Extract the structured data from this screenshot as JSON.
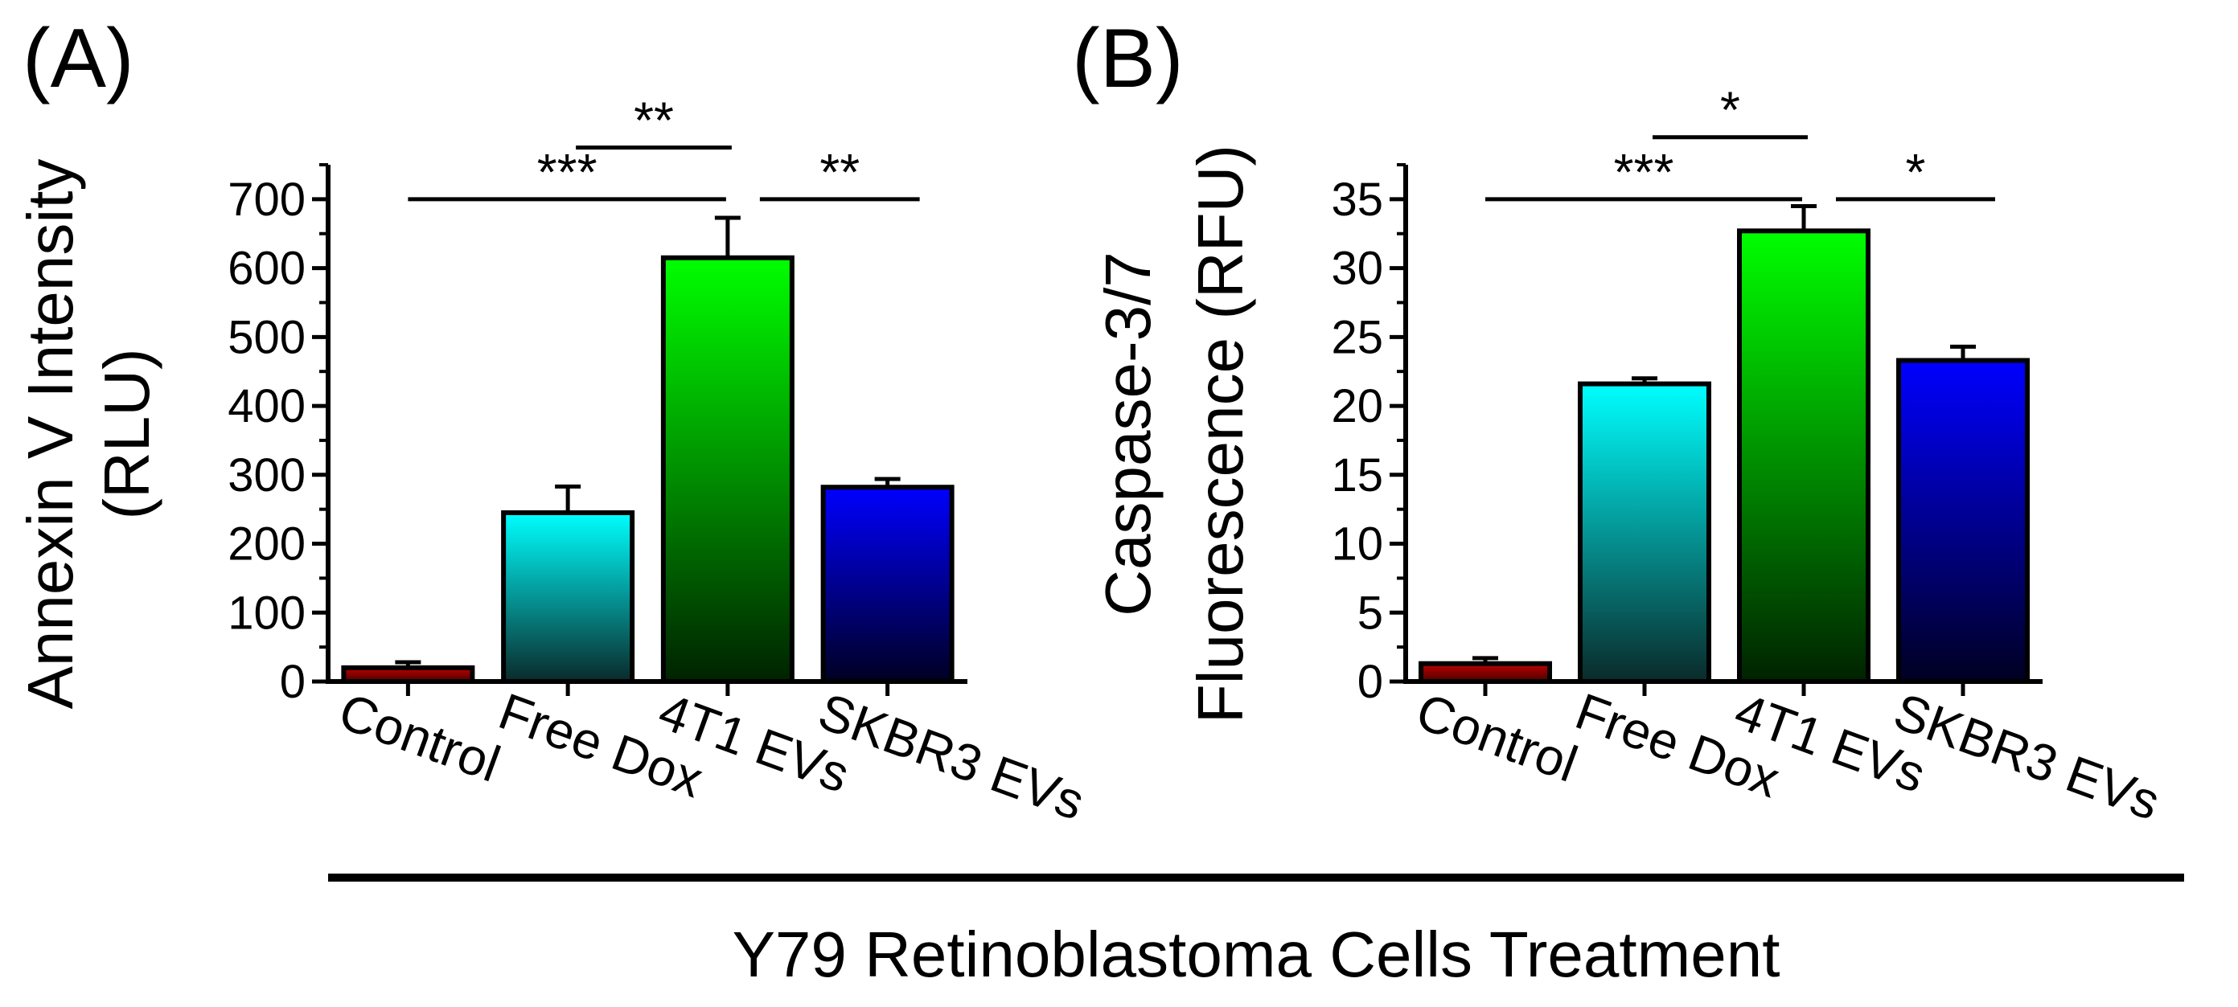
{
  "figure": {
    "footer_label": "Y79 Retinoblastoma Cells Treatment"
  },
  "chart_data": [
    {
      "type": "bar",
      "panel_label": "(A)",
      "ylabel": "Annexin V Intensity (RLU)",
      "ylabel_lines": [
        "Annexin V Intensity",
        "(RLU)"
      ],
      "ylim": [
        0,
        750
      ],
      "yticks": [
        0,
        100,
        200,
        300,
        400,
        500,
        600,
        700
      ],
      "categories": [
        "Control",
        "Free Dox",
        "4T1 EVs",
        "SKBR3 EVs"
      ],
      "values": [
        20,
        245,
        615,
        282
      ],
      "errors": [
        8,
        38,
        58,
        12
      ],
      "bar_colors": [
        [
          "#c00000",
          "#4a0000"
        ],
        [
          "#00ffff",
          "#0a2a2a"
        ],
        [
          "#00ff00",
          "#002200"
        ],
        [
          "#0000ff",
          "#000022"
        ]
      ],
      "significance": [
        {
          "from": 0,
          "to": 2,
          "label": "***",
          "level": 700
        },
        {
          "from": 1,
          "to": 2,
          "label": "**",
          "level": 775
        },
        {
          "from": 2,
          "to": 3,
          "label": "**",
          "level": 700
        }
      ]
    },
    {
      "type": "bar",
      "panel_label": "(B)",
      "ylabel": "Caspase-3/7 Fluorescence (RFU)",
      "ylabel_lines": [
        "Caspase-3/7",
        "Fluorescence (RFU)"
      ],
      "ylim": [
        0,
        37.5
      ],
      "yticks": [
        0,
        5,
        10,
        15,
        20,
        25,
        30,
        35
      ],
      "categories": [
        "Control",
        "Free Dox",
        "4T1 EVs",
        "SKBR3 EVs"
      ],
      "values": [
        1.3,
        21.6,
        32.7,
        23.3
      ],
      "errors": [
        0.4,
        0.4,
        1.8,
        1.0
      ],
      "bar_colors": [
        [
          "#c00000",
          "#4a0000"
        ],
        [
          "#00ffff",
          "#0a2a2a"
        ],
        [
          "#00ff00",
          "#002200"
        ],
        [
          "#0000ff",
          "#000022"
        ]
      ],
      "significance": [
        {
          "from": 0,
          "to": 2,
          "label": "***",
          "level": 35
        },
        {
          "from": 1,
          "to": 2,
          "label": "*",
          "level": 39.5
        },
        {
          "from": 2,
          "to": 3,
          "label": "*",
          "level": 35
        }
      ]
    }
  ]
}
